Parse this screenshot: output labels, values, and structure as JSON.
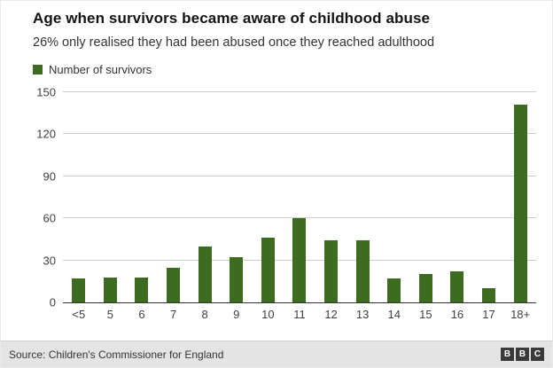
{
  "header": {
    "title": "Age when survivors became aware of childhood abuse",
    "subtitle": "26% only realised they had been abused once they reached adulthood"
  },
  "legend": {
    "label": "Number of survivors",
    "color": "#3d6b1f"
  },
  "chart_data": {
    "type": "bar",
    "title": "Age when survivors became aware of childhood abuse",
    "categories": [
      "<5",
      "5",
      "6",
      "7",
      "8",
      "9",
      "10",
      "11",
      "12",
      "13",
      "14",
      "15",
      "16",
      "17",
      "18+"
    ],
    "values": [
      17,
      18,
      18,
      25,
      40,
      32,
      46,
      60,
      44,
      44,
      17,
      20,
      22,
      10,
      141
    ],
    "series_name": "Number of survivors",
    "xlabel": "",
    "ylabel": "",
    "ylim": [
      0,
      150
    ],
    "yticks": [
      0,
      30,
      60,
      90,
      120,
      150
    ],
    "grid": "horizontal",
    "bar_color": "#3d6b1f",
    "legend_position": "top-left"
  },
  "footer": {
    "source": "Source: Children's Commissioner for England",
    "logo_blocks": [
      "B",
      "B",
      "C"
    ]
  }
}
